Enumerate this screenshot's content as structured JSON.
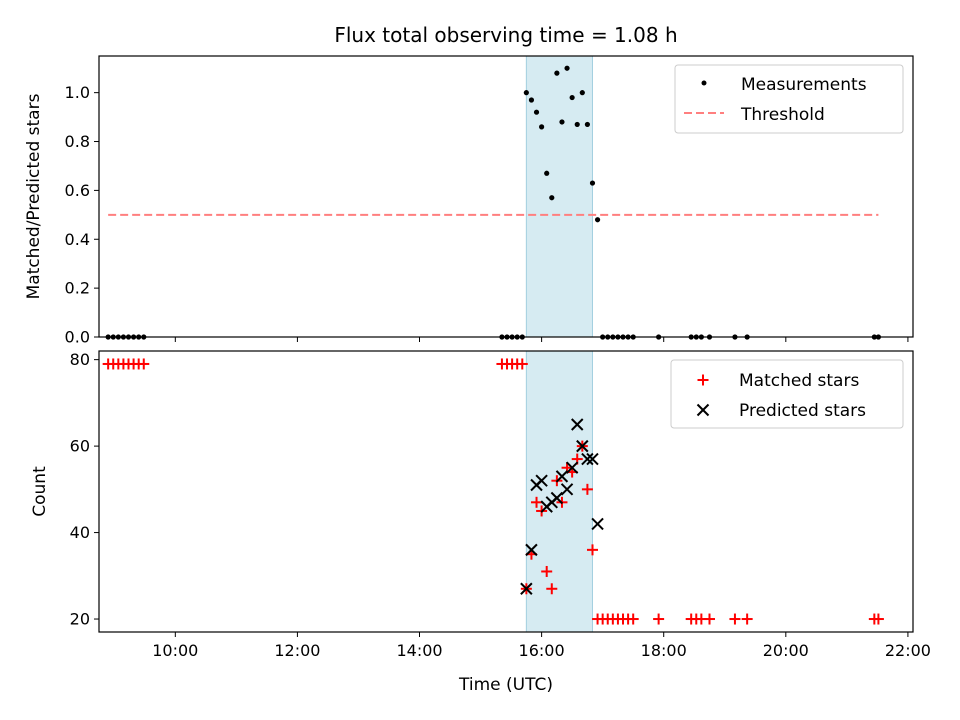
{
  "chart_data": [
    {
      "type": "scatter",
      "title": "Flux total observing time = 1.08 h",
      "xlabel": "",
      "ylabel": "Matched/Predicted stars",
      "xlim": [
        "08:45",
        "22:05"
      ],
      "ylim": [
        0,
        1.15
      ],
      "yticks": [
        "0.0",
        "0.2",
        "0.4",
        "0.6",
        "0.8",
        "1.0"
      ],
      "shaded_x_range": [
        "15:45",
        "16:50"
      ],
      "shade_color": "#add8e6",
      "legend_position": "top-right",
      "series": [
        {
          "name": "Measurements",
          "marker": "dot",
          "color": "#000000",
          "points": [
            [
              "08:54",
              0
            ],
            [
              "08:59",
              0
            ],
            [
              "09:04",
              0
            ],
            [
              "09:09",
              0
            ],
            [
              "09:14",
              0
            ],
            [
              "09:19",
              0
            ],
            [
              "09:24",
              0
            ],
            [
              "09:29",
              0
            ],
            [
              "15:21",
              0
            ],
            [
              "15:26",
              0
            ],
            [
              "15:31",
              0
            ],
            [
              "15:36",
              0
            ],
            [
              "15:41",
              0
            ],
            [
              "15:45",
              1.0
            ],
            [
              "15:50",
              0.97
            ],
            [
              "15:55",
              0.92
            ],
            [
              "16:00",
              0.86
            ],
            [
              "16:05",
              0.67
            ],
            [
              "16:10",
              0.57
            ],
            [
              "16:15",
              1.08
            ],
            [
              "16:20",
              0.88
            ],
            [
              "16:25",
              1.1
            ],
            [
              "16:30",
              0.98
            ],
            [
              "16:35",
              0.87
            ],
            [
              "16:40",
              1.0
            ],
            [
              "16:45",
              0.87
            ],
            [
              "16:50",
              0.63
            ],
            [
              "16:55",
              0.48
            ],
            [
              "17:00",
              0
            ],
            [
              "17:05",
              0
            ],
            [
              "17:10",
              0
            ],
            [
              "17:15",
              0
            ],
            [
              "17:20",
              0
            ],
            [
              "17:25",
              0
            ],
            [
              "17:30",
              0
            ],
            [
              "17:55",
              0
            ],
            [
              "18:27",
              0
            ],
            [
              "18:32",
              0
            ],
            [
              "18:37",
              0
            ],
            [
              "18:45",
              0
            ],
            [
              "19:10",
              0
            ],
            [
              "19:22",
              0
            ],
            [
              "21:27",
              0
            ],
            [
              "21:31",
              0
            ]
          ]
        },
        {
          "name": "Threshold",
          "style": "dashed-line",
          "color": "#ff7f7f",
          "points": [
            [
              "08:54",
              0.5
            ],
            [
              "21:31",
              0.5
            ]
          ]
        }
      ]
    },
    {
      "type": "scatter",
      "title": "",
      "xlabel": "Time (UTC)",
      "ylabel": "Count",
      "xlim": [
        "08:45",
        "22:05"
      ],
      "xticks": [
        "10:00",
        "12:00",
        "14:00",
        "16:00",
        "18:00",
        "20:00",
        "22:00"
      ],
      "ylim": [
        17,
        82
      ],
      "yticks": [
        "20",
        "40",
        "60",
        "80"
      ],
      "shaded_x_range": [
        "15:45",
        "16:50"
      ],
      "shade_color": "#add8e6",
      "legend_position": "top-right",
      "series": [
        {
          "name": "Matched stars",
          "marker": "plus",
          "color": "#ff0000",
          "points": [
            [
              "08:54",
              79
            ],
            [
              "08:59",
              79
            ],
            [
              "09:04",
              79
            ],
            [
              "09:09",
              79
            ],
            [
              "09:14",
              79
            ],
            [
              "09:19",
              79
            ],
            [
              "09:24",
              79
            ],
            [
              "09:29",
              79
            ],
            [
              "15:21",
              79
            ],
            [
              "15:26",
              79
            ],
            [
              "15:31",
              79
            ],
            [
              "15:36",
              79
            ],
            [
              "15:41",
              79
            ],
            [
              "15:45",
              27
            ],
            [
              "15:50",
              35
            ],
            [
              "15:55",
              47
            ],
            [
              "16:00",
              45
            ],
            [
              "16:05",
              31
            ],
            [
              "16:10",
              27
            ],
            [
              "16:15",
              52
            ],
            [
              "16:20",
              47
            ],
            [
              "16:25",
              55
            ],
            [
              "16:30",
              54
            ],
            [
              "16:35",
              57
            ],
            [
              "16:40",
              60
            ],
            [
              "16:45",
              50
            ],
            [
              "16:50",
              36
            ],
            [
              "16:55",
              20
            ],
            [
              "17:00",
              20
            ],
            [
              "17:05",
              20
            ],
            [
              "17:10",
              20
            ],
            [
              "17:15",
              20
            ],
            [
              "17:20",
              20
            ],
            [
              "17:25",
              20
            ],
            [
              "17:30",
              20
            ],
            [
              "17:55",
              20
            ],
            [
              "18:27",
              20
            ],
            [
              "18:32",
              20
            ],
            [
              "18:37",
              20
            ],
            [
              "18:45",
              20
            ],
            [
              "19:10",
              20
            ],
            [
              "19:22",
              20
            ],
            [
              "21:27",
              20
            ],
            [
              "21:31",
              20
            ]
          ]
        },
        {
          "name": "Predicted stars",
          "marker": "x",
          "color": "#000000",
          "points": [
            [
              "15:45",
              27
            ],
            [
              "15:50",
              36
            ],
            [
              "15:55",
              51
            ],
            [
              "16:00",
              52
            ],
            [
              "16:05",
              46
            ],
            [
              "16:10",
              47
            ],
            [
              "16:15",
              48
            ],
            [
              "16:20",
              53
            ],
            [
              "16:25",
              50
            ],
            [
              "16:30",
              55
            ],
            [
              "16:35",
              65
            ],
            [
              "16:40",
              60
            ],
            [
              "16:45",
              57
            ],
            [
              "16:50",
              57
            ],
            [
              "16:55",
              42
            ]
          ]
        }
      ]
    }
  ]
}
